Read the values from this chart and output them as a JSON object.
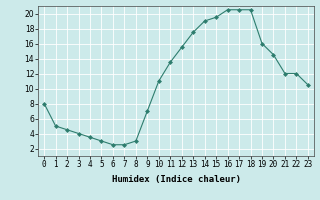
{
  "x": [
    0,
    1,
    2,
    3,
    4,
    5,
    6,
    7,
    8,
    9,
    10,
    11,
    12,
    13,
    14,
    15,
    16,
    17,
    18,
    19,
    20,
    21,
    22,
    23
  ],
  "y": [
    8,
    5,
    4.5,
    4,
    3.5,
    3,
    2.5,
    2.5,
    3,
    7,
    11,
    13.5,
    15.5,
    17.5,
    19,
    19.5,
    20.5,
    20.5,
    20.5,
    16,
    14.5,
    12,
    12,
    10.5
  ],
  "line_color": "#2e7d6e",
  "marker": "D",
  "marker_size": 2.0,
  "background_color": "#cceaea",
  "grid_color": "#ffffff",
  "xlabel": "Humidex (Indice chaleur)",
  "xlim": [
    -0.5,
    23.5
  ],
  "ylim": [
    1,
    21
  ],
  "yticks": [
    2,
    4,
    6,
    8,
    10,
    12,
    14,
    16,
    18,
    20
  ],
  "xticks": [
    0,
    1,
    2,
    3,
    4,
    5,
    6,
    7,
    8,
    9,
    10,
    11,
    12,
    13,
    14,
    15,
    16,
    17,
    18,
    19,
    20,
    21,
    22,
    23
  ],
  "xtick_labels": [
    "0",
    "1",
    "2",
    "3",
    "4",
    "5",
    "6",
    "7",
    "8",
    "9",
    "10",
    "11",
    "12",
    "13",
    "14",
    "15",
    "16",
    "17",
    "18",
    "19",
    "20",
    "21",
    "22",
    "23"
  ],
  "label_fontsize": 6.5,
  "tick_fontsize": 5.5
}
